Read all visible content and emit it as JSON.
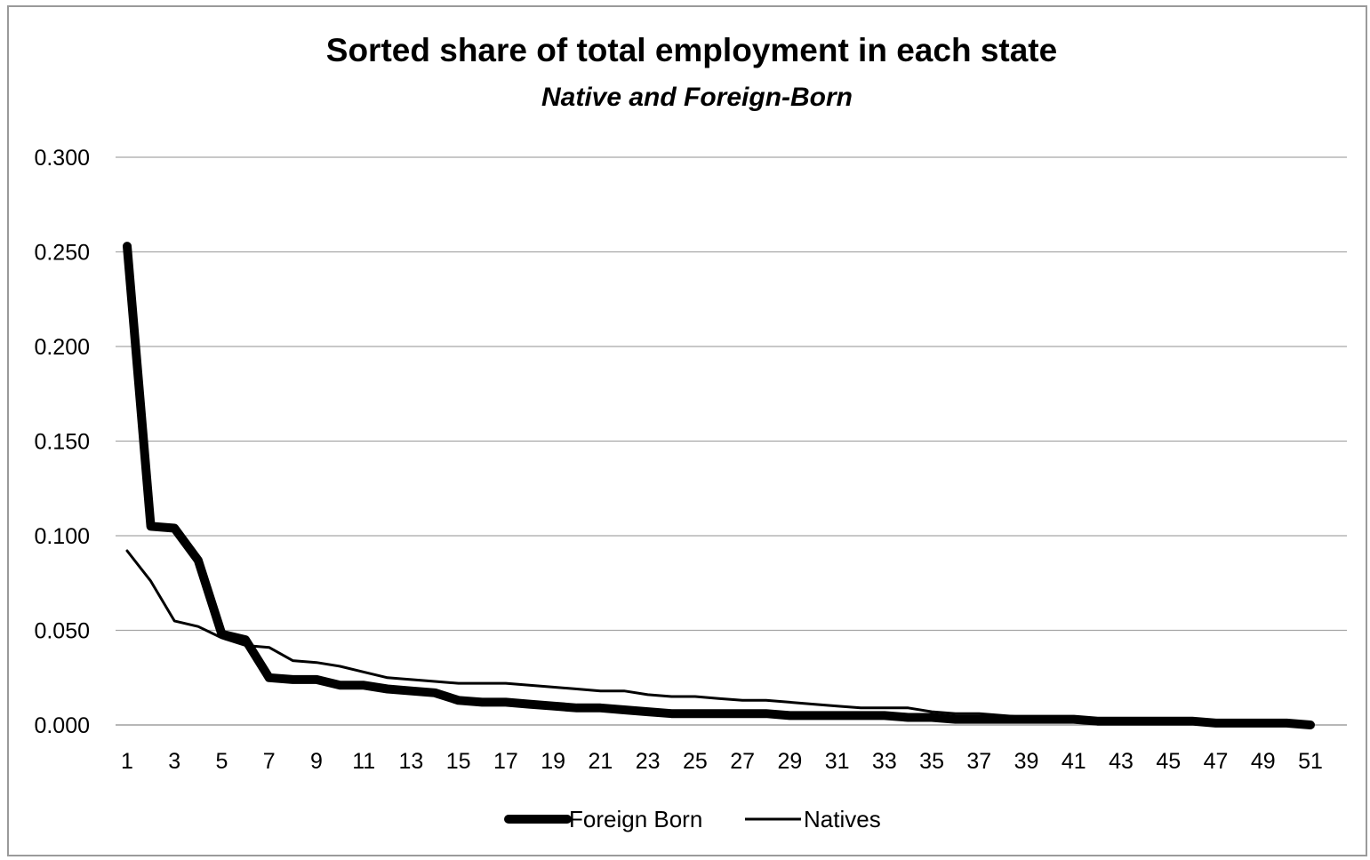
{
  "chart_data": {
    "type": "line",
    "title": "Sorted share of total employment in each state",
    "subtitle": "Native and Foreign-Born",
    "xlabel": "",
    "ylabel": "",
    "ylim": [
      0,
      0.3
    ],
    "y_ticks": [
      "0.000",
      "0.050",
      "0.100",
      "0.150",
      "0.200",
      "0.250",
      "0.300"
    ],
    "x_ticks": [
      "1",
      "3",
      "5",
      "7",
      "9",
      "11",
      "13",
      "15",
      "17",
      "19",
      "21",
      "23",
      "25",
      "27",
      "29",
      "31",
      "33",
      "35",
      "37",
      "39",
      "41",
      "43",
      "45",
      "47",
      "49",
      "51"
    ],
    "grid": true,
    "legend_position": "bottom",
    "x": [
      1,
      2,
      3,
      4,
      5,
      6,
      7,
      8,
      9,
      10,
      11,
      12,
      13,
      14,
      15,
      16,
      17,
      18,
      19,
      20,
      21,
      22,
      23,
      24,
      25,
      26,
      27,
      28,
      29,
      30,
      31,
      32,
      33,
      34,
      35,
      36,
      37,
      38,
      39,
      40,
      41,
      42,
      43,
      44,
      45,
      46,
      47,
      48,
      49,
      50,
      51
    ],
    "series": [
      {
        "name": "Foreign Born",
        "color": "#000000",
        "values": [
          0.253,
          0.105,
          0.104,
          0.087,
          0.048,
          0.045,
          0.025,
          0.024,
          0.024,
          0.021,
          0.021,
          0.019,
          0.018,
          0.017,
          0.013,
          0.012,
          0.012,
          0.011,
          0.01,
          0.009,
          0.009,
          0.008,
          0.007,
          0.006,
          0.006,
          0.006,
          0.006,
          0.006,
          0.005,
          0.005,
          0.005,
          0.005,
          0.005,
          0.004,
          0.004,
          0.003,
          0.003,
          0.003,
          0.003,
          0.003,
          0.003,
          0.002,
          0.002,
          0.002,
          0.002,
          0.002,
          0.001,
          0.001,
          0.001,
          0.001,
          0.0
        ]
      },
      {
        "name": "Natives",
        "color": "#000000",
        "values": [
          0.092,
          0.076,
          0.055,
          0.052,
          0.046,
          0.042,
          0.041,
          0.034,
          0.033,
          0.031,
          0.028,
          0.025,
          0.024,
          0.023,
          0.022,
          0.022,
          0.022,
          0.021,
          0.02,
          0.019,
          0.018,
          0.018,
          0.016,
          0.015,
          0.015,
          0.014,
          0.013,
          0.013,
          0.012,
          0.011,
          0.01,
          0.009,
          0.009,
          0.009,
          0.007,
          0.006,
          0.006,
          0.005,
          0.004,
          0.004,
          0.003,
          0.003,
          0.003,
          0.002,
          0.002,
          0.002,
          0.002,
          0.001,
          0.001,
          0.001,
          0.001
        ]
      }
    ]
  }
}
